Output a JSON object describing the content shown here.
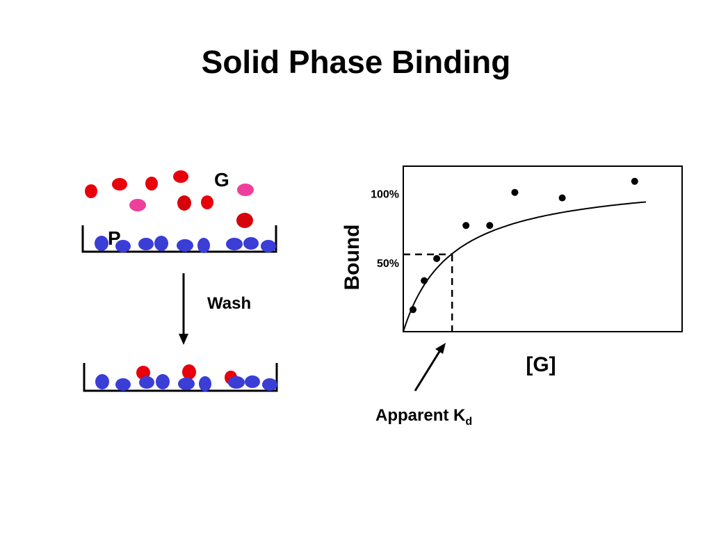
{
  "title": "Solid Phase Binding",
  "colors": {
    "free_ligand": "#e8000b",
    "ligand_pink": "#ee3f9c",
    "ligand_dark": "#d6040a",
    "protein": "#3a3dd6",
    "line": "#000000"
  },
  "left_panel": {
    "ligand_label": "G",
    "protein_label": "P",
    "wash_label": "Wash"
  },
  "chart": {
    "y_axis_label": "Bound",
    "x_axis_label": "[G]",
    "tick_100": "100%",
    "tick_50": "50%",
    "annotation_prefix": "Apparent K",
    "annotation_subscript": "d"
  },
  "chart_data": {
    "type": "scatter",
    "title": "",
    "xlabel": "[G]",
    "ylabel": "Bound",
    "ylim": [
      0,
      120
    ],
    "xlim": [
      0,
      10
    ],
    "y_ticks": [
      {
        "value": 50,
        "label": "50%"
      },
      {
        "value": 100,
        "label": "100%"
      }
    ],
    "points": [
      {
        "x": 0.35,
        "y": 16
      },
      {
        "x": 0.75,
        "y": 37
      },
      {
        "x": 1.2,
        "y": 53
      },
      {
        "x": 2.25,
        "y": 77
      },
      {
        "x": 3.1,
        "y": 77
      },
      {
        "x": 4.0,
        "y": 101
      },
      {
        "x": 5.7,
        "y": 97
      },
      {
        "x": 8.3,
        "y": 109
      }
    ],
    "fit": {
      "model": "saturation",
      "bmax": 113,
      "kd": 1.75,
      "x_range": [
        0,
        8.7
      ]
    },
    "apparent_kd": {
      "x": 1.75,
      "y": 56
    },
    "grid": false,
    "legend": "none"
  }
}
